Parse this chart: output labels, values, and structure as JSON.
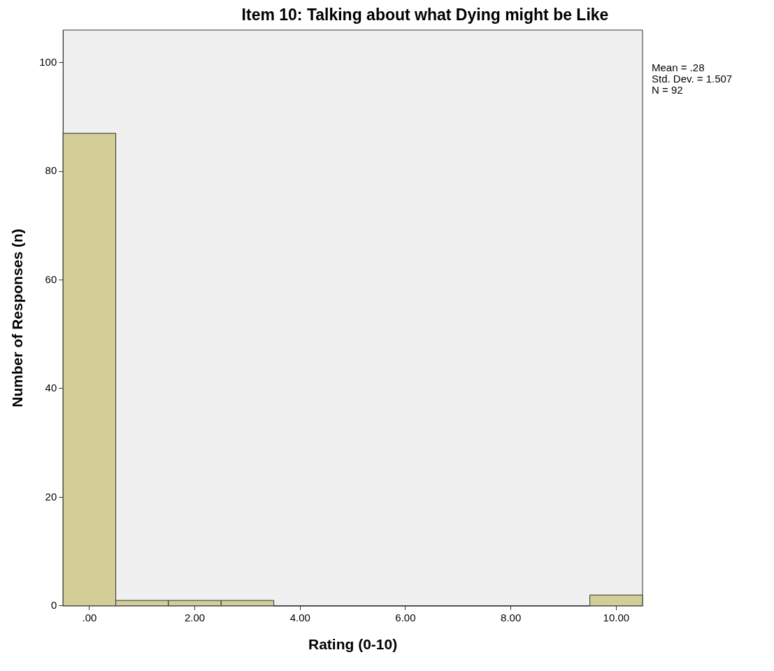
{
  "chart_data": {
    "type": "histogram",
    "title": "Item 10: Talking about what Dying might be Like",
    "xlabel": "Rating (0-10)",
    "ylabel": "Number of Responses (n)",
    "bins": [
      -0.5,
      0.5,
      1.5,
      2.5,
      3.5,
      4.5,
      5.5,
      6.5,
      7.5,
      8.5,
      9.5,
      10.5
    ],
    "values": [
      87,
      1,
      1,
      1,
      0,
      0,
      0,
      0,
      0,
      0,
      2
    ],
    "color": "#d3ce97",
    "xlim": [
      -0.5,
      10.5
    ],
    "xticks": [
      {
        "value": 0,
        "label": ".00"
      },
      {
        "value": 2,
        "label": "2.00"
      },
      {
        "value": 4,
        "label": "4.00"
      },
      {
        "value": 6,
        "label": "6.00"
      },
      {
        "value": 8,
        "label": "8.00"
      },
      {
        "value": 10,
        "label": "10.00"
      }
    ],
    "ylim": [
      0,
      106
    ],
    "yticks": [
      0,
      20,
      40,
      60,
      80,
      100
    ],
    "annotations": [
      "Mean = .28",
      "Std. Dev. = 1.507",
      "N = 92"
    ]
  }
}
